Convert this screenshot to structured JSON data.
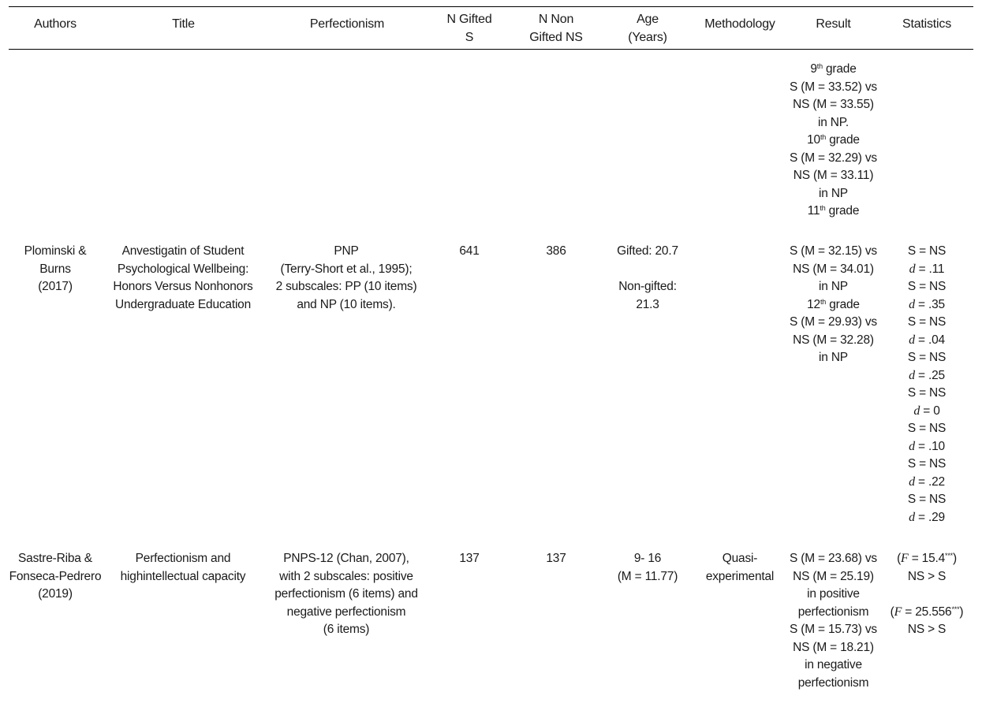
{
  "headers": {
    "authors": "Authors",
    "title": "Title",
    "perfectionism": "Perfectionism",
    "n_gifted": [
      "N Gifted",
      "S"
    ],
    "n_non_gifted": [
      "N Non",
      "Gifted NS"
    ],
    "age": [
      "Age",
      "(Years)"
    ],
    "methodology": "Methodology",
    "result": "Result",
    "statistics": "Statistics"
  },
  "top_result": {
    "grade9": "grade",
    "grade9_sup": "th",
    "grade9_num": "9",
    "l1": "S (M = 33.52) vs",
    "l2": "NS (M = 33.55)",
    "l3": "in NP.",
    "grade10_num": "10",
    "grade10_sup": "th",
    "grade10": "grade",
    "l4": "S (M = 32.29) vs",
    "l5": "NS (M = 33.11)",
    "l6": "in NP",
    "grade11_num": "11",
    "grade11_sup": "th",
    "grade11": "grade"
  },
  "row1": {
    "authors": [
      "Plominski &",
      "Burns",
      "(2017)"
    ],
    "title": [
      "Anvestigatin of Student",
      "Psychological Wellbeing:",
      "Honors Versus Nonhonors",
      "Undergraduate Education"
    ],
    "perfectionism": [
      "PNP",
      "(Terry-Short et al., 1995);",
      "2 subscales: PP (10 items)",
      "and NP (10 items)."
    ],
    "n_gifted": "641",
    "n_non_gifted": "386",
    "age": [
      "Gifted: 20.7",
      "",
      "Non-gifted:",
      "21.3"
    ],
    "methodology": "",
    "result": {
      "l1": "S (M = 32.15) vs",
      "l2": "NS (M = 34.01)",
      "l3": "in NP",
      "grade12_num": "12",
      "grade12_sup": "th",
      "grade12": "grade",
      "l4": "S (M = 29.93) vs",
      "l5": "NS (M = 32.28)",
      "l6": "in NP"
    },
    "statistics": [
      {
        "s": "S = NS",
        "d": ".11"
      },
      {
        "s": "S = NS",
        "d": ".35"
      },
      {
        "s": "S = NS",
        "d": ".04"
      },
      {
        "s": "S = NS",
        "d": ".25"
      },
      {
        "s": "S = NS",
        "d": "0"
      },
      {
        "s": "S = NS",
        "d": ".10"
      },
      {
        "s": "S = NS",
        "d": ".22"
      },
      {
        "s": "S = NS",
        "d": ".29"
      }
    ],
    "d_label": "d"
  },
  "row2": {
    "authors": [
      "Sastre-Riba &",
      "Fonseca-Pedrero",
      "(2019)"
    ],
    "title": [
      "Perfectionism and",
      "highintellectual capacity"
    ],
    "perfectionism": [
      "PNPS-12 (Chan, 2007),",
      "with 2 subscales: positive",
      "perfectionism (6 items) and",
      "negative perfectionism",
      "(6 items)"
    ],
    "n_gifted": "137",
    "n_non_gifted": "137",
    "age": [
      "9- 16",
      "(M = 11.77)"
    ],
    "methodology": [
      "Quasi-",
      "experimental"
    ],
    "result": [
      "S (M = 23.68) vs",
      "NS (M = 25.19)",
      "in positive",
      "perfectionism",
      "S (M = 15.73) vs",
      "NS (M = 18.21)",
      "in negative",
      "perfectionism"
    ],
    "statistics": {
      "f1_label": "F",
      "f1_open": "(",
      "f1_value": " = 15.4",
      "f1_sig": "***",
      "f1_close": ")",
      "c1": "NS  >  S",
      "f2_label": "F",
      "f2_open": "(",
      "f2_value": " = 25.556",
      "f2_sig": "***",
      "f2_close": ")",
      "c2": "NS  >  S"
    }
  }
}
